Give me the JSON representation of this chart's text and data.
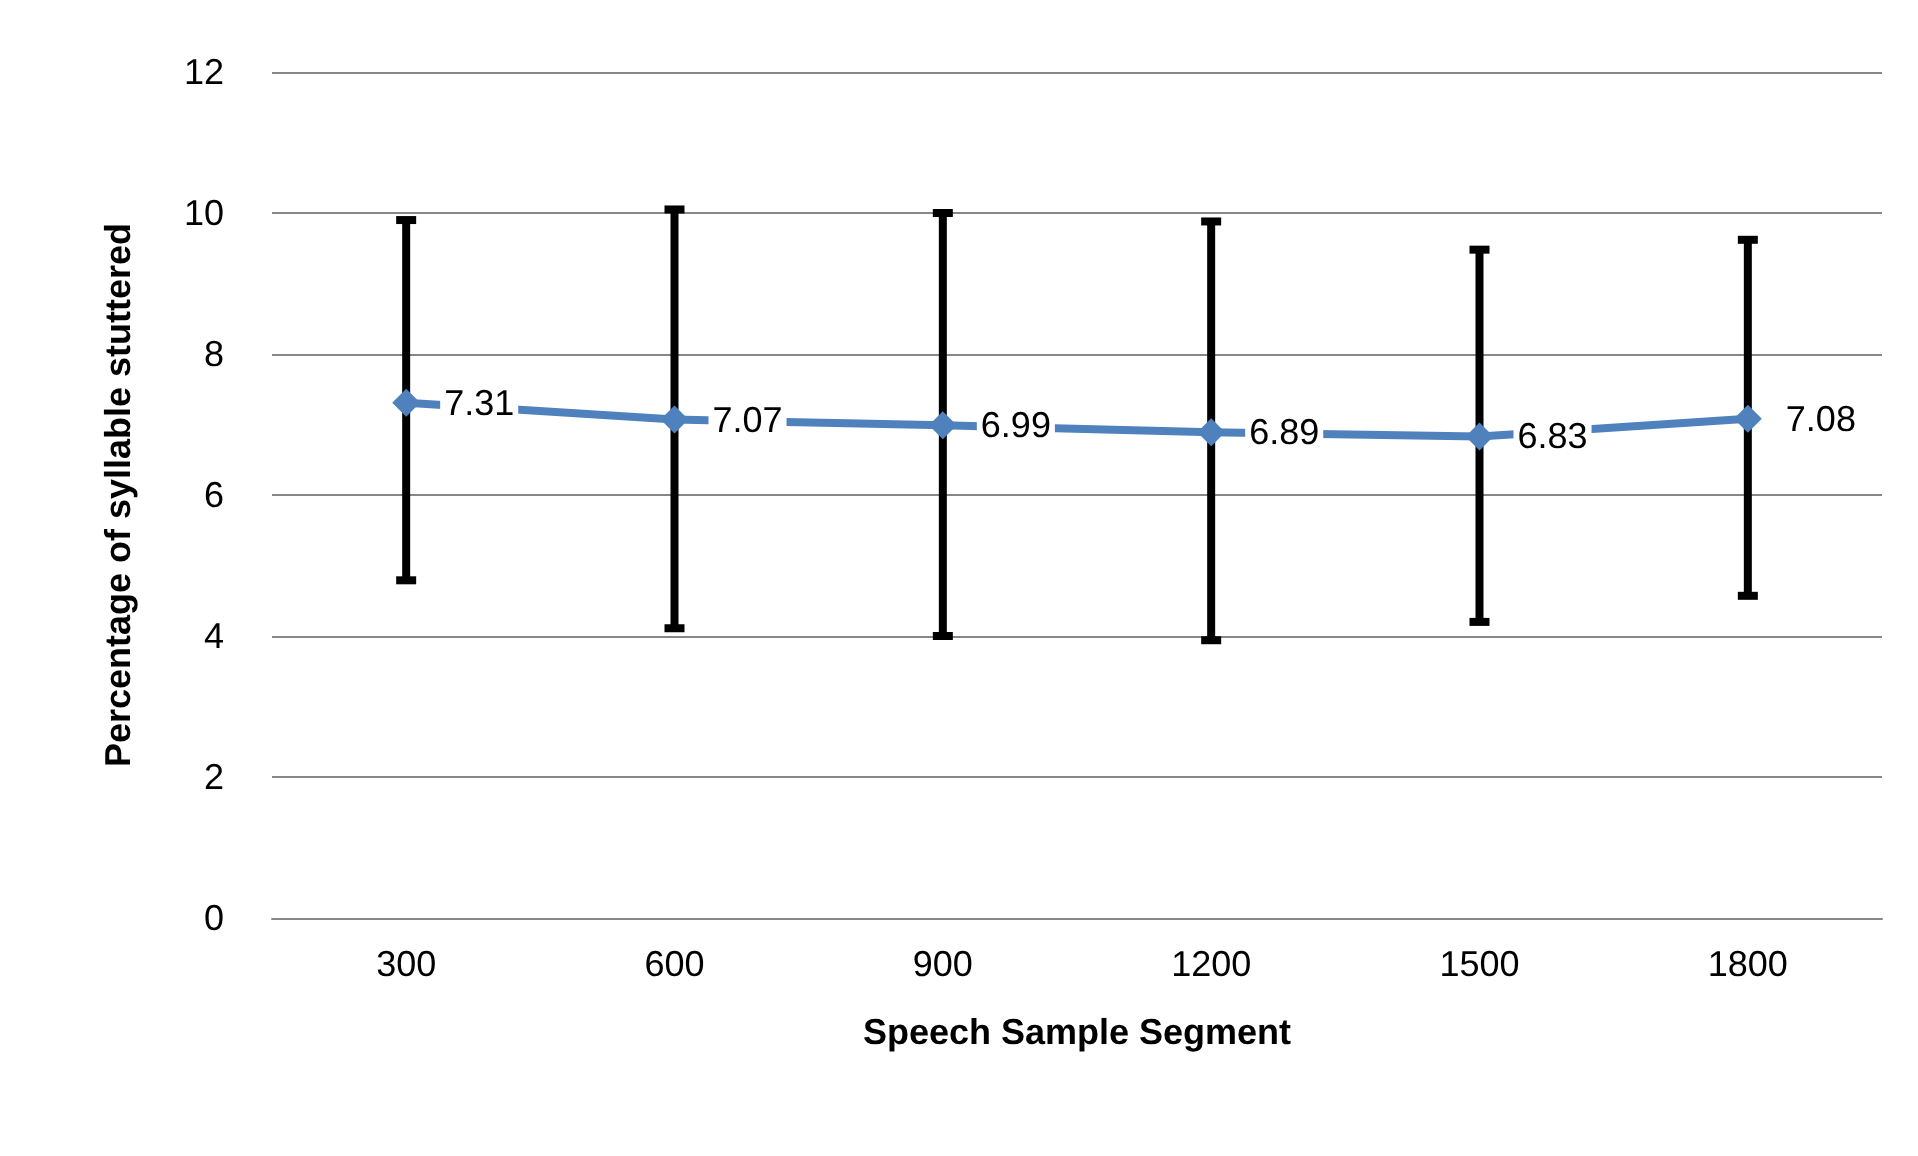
{
  "chart_data": {
    "type": "line",
    "xlabel": "Speech Sample Segment",
    "ylabel": "Percentage of syllable stuttered",
    "categories": [
      "300",
      "600",
      "900",
      "1200",
      "1500",
      "1800"
    ],
    "series": [
      {
        "color": "#4f81bd",
        "values": [
          7.31,
          7.07,
          6.99,
          6.89,
          6.83,
          7.08
        ],
        "errors": [
          [
            4.79,
            9.9
          ],
          [
            4.11,
            10.05
          ],
          [
            4.0,
            10.0
          ],
          [
            3.94,
            9.88
          ],
          [
            4.2,
            9.48
          ],
          [
            4.57,
            9.62
          ]
        ]
      }
    ],
    "ylim": [
      0,
      12
    ],
    "yticks": [
      0,
      2,
      4,
      6,
      8,
      10,
      12
    ],
    "grid": "y",
    "marker": "diamond",
    "line_style": "solid",
    "data_labels": true
  }
}
